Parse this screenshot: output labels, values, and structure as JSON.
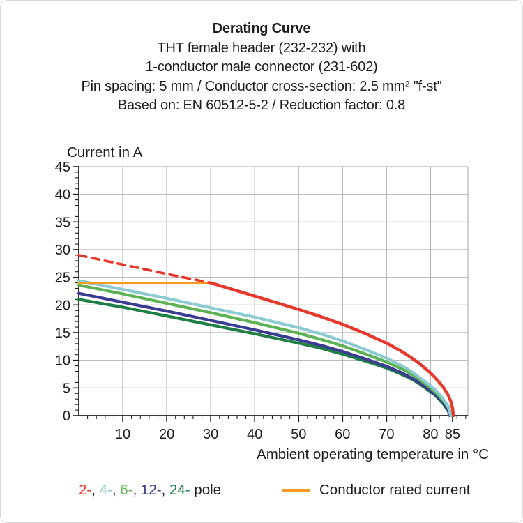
{
  "header": {
    "title": "Derating Curve",
    "lines": [
      "THT female header (232-232) with",
      "1-conductor male connector (231-602)",
      "Pin spacing: 5 mm / Conductor cross-section: 2.5 mm² \"f-st\"",
      "Based on: EN 60512-5-2 / Reduction factor: 0.8"
    ]
  },
  "chart_data": {
    "type": "line",
    "title": "Derating Curve",
    "ylabel": "Current in A",
    "xlabel": "Ambient operating temperature in °C",
    "xlim": [
      0,
      88.5
    ],
    "ylim": [
      0,
      45
    ],
    "x_major_ticks": [
      10,
      20,
      30,
      40,
      50,
      60,
      70,
      80,
      85
    ],
    "x_minor_step": 2,
    "y_major_step": 5,
    "y_minor_step": 1,
    "grid": true,
    "grid_color": "#b2b2b2",
    "axis_color": "#1d1d1b",
    "series": [
      {
        "name": "24-pole",
        "color": "#1e7f44",
        "width": 4.2,
        "points": [
          [
            0,
            21.0
          ],
          [
            10,
            19.6
          ],
          [
            20,
            18.0
          ],
          [
            30,
            16.4
          ],
          [
            40,
            14.8
          ],
          [
            50,
            13.1
          ],
          [
            55,
            12.2
          ],
          [
            60,
            11.1
          ],
          [
            65,
            9.9
          ],
          [
            70,
            8.6
          ],
          [
            73,
            7.6
          ],
          [
            75,
            6.9
          ],
          [
            77,
            6.0
          ],
          [
            79,
            4.9
          ],
          [
            80,
            4.3
          ],
          [
            81,
            3.7
          ],
          [
            82,
            2.9
          ],
          [
            83,
            2.0
          ],
          [
            84,
            0.9
          ],
          [
            84.4,
            0
          ]
        ]
      },
      {
        "name": "12-pole",
        "color": "#3a3b92",
        "width": 4.2,
        "points": [
          [
            0,
            22.1
          ],
          [
            10,
            20.5
          ],
          [
            20,
            18.9
          ],
          [
            30,
            17.2
          ],
          [
            40,
            15.5
          ],
          [
            50,
            13.7
          ],
          [
            55,
            12.7
          ],
          [
            60,
            11.6
          ],
          [
            65,
            10.3
          ],
          [
            70,
            8.9
          ],
          [
            73,
            7.9
          ],
          [
            75,
            7.1
          ],
          [
            77,
            6.2
          ],
          [
            79,
            5.1
          ],
          [
            80,
            4.5
          ],
          [
            81,
            3.9
          ],
          [
            82,
            3.1
          ],
          [
            83,
            2.2
          ],
          [
            84,
            1.0
          ],
          [
            84.5,
            0
          ]
        ]
      },
      {
        "name": "6-pole",
        "color": "#5db254",
        "width": 4.2,
        "points": [
          [
            0,
            23.6
          ],
          [
            10,
            22.0
          ],
          [
            20,
            20.3
          ],
          [
            30,
            18.6
          ],
          [
            40,
            16.8
          ],
          [
            50,
            14.9
          ],
          [
            55,
            13.8
          ],
          [
            60,
            12.6
          ],
          [
            65,
            11.2
          ],
          [
            70,
            9.7
          ],
          [
            73,
            8.6
          ],
          [
            75,
            7.8
          ],
          [
            77,
            6.8
          ],
          [
            79,
            5.6
          ],
          [
            80,
            5.0
          ],
          [
            81,
            4.3
          ],
          [
            82,
            3.5
          ],
          [
            83,
            2.6
          ],
          [
            84,
            1.5
          ],
          [
            84.8,
            0
          ]
        ]
      },
      {
        "name": "4-pole",
        "color": "#8bcbd1",
        "width": 4.2,
        "points": [
          [
            0,
            24.4
          ],
          [
            10,
            22.8
          ],
          [
            20,
            21.2
          ],
          [
            30,
            19.5
          ],
          [
            40,
            17.8
          ],
          [
            50,
            15.9
          ],
          [
            55,
            14.8
          ],
          [
            60,
            13.5
          ],
          [
            65,
            12.0
          ],
          [
            70,
            10.4
          ],
          [
            73,
            9.2
          ],
          [
            75,
            8.3
          ],
          [
            77,
            7.2
          ],
          [
            79,
            6.0
          ],
          [
            80,
            5.4
          ],
          [
            81,
            4.7
          ],
          [
            82,
            3.9
          ],
          [
            83,
            2.9
          ],
          [
            84,
            1.7
          ],
          [
            84.6,
            0
          ]
        ]
      },
      {
        "name": "conductor-rated-current",
        "color": "#f59b20",
        "width": 3,
        "points": [
          [
            0,
            24
          ],
          [
            30,
            24
          ]
        ]
      },
      {
        "name": "2-pole-dashed",
        "color": "#e8382b",
        "width": 3.6,
        "dash": "11 8",
        "points": [
          [
            0,
            29
          ],
          [
            10,
            27.3
          ],
          [
            20,
            25.6
          ],
          [
            30,
            24
          ]
        ]
      },
      {
        "name": "2-pole",
        "color": "#e8382b",
        "width": 4.4,
        "points": [
          [
            30,
            24
          ],
          [
            35,
            22.8
          ],
          [
            40,
            21.6
          ],
          [
            45,
            20.4
          ],
          [
            50,
            19.2
          ],
          [
            55,
            17.9
          ],
          [
            60,
            16.5
          ],
          [
            65,
            14.9
          ],
          [
            70,
            13.1
          ],
          [
            73,
            11.8
          ],
          [
            75,
            10.8
          ],
          [
            77,
            9.7
          ],
          [
            79,
            8.4
          ],
          [
            80,
            7.7
          ],
          [
            81,
            6.9
          ],
          [
            82,
            6.0
          ],
          [
            83,
            5.0
          ],
          [
            84,
            3.7
          ],
          [
            84.6,
            2.6
          ],
          [
            85,
            1.4
          ],
          [
            85.2,
            0
          ]
        ]
      }
    ]
  },
  "legend": {
    "poles": [
      {
        "text": "2-",
        "color": "#e8382b"
      },
      {
        "text": "4-",
        "color": "#8bcbd1"
      },
      {
        "text": "6-",
        "color": "#5db254"
      },
      {
        "text": "12-",
        "color": "#3a3b92"
      },
      {
        "text": "24-",
        "color": "#1e7f44"
      }
    ],
    "separator": ", ",
    "suffix": " pole",
    "rated": {
      "label": "Conductor rated current",
      "color": "#f59b20"
    }
  }
}
